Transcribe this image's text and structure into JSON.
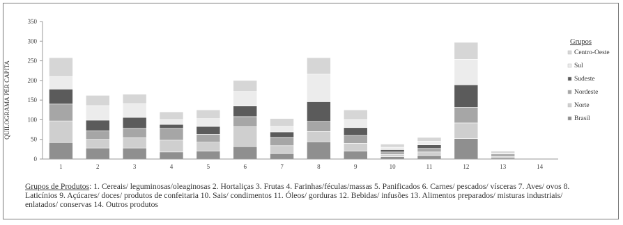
{
  "chart_data": {
    "type": "bar",
    "stacked": true,
    "ylabel": "QUILOGRAMA PER CAPITA",
    "xlabel": "",
    "ylim": [
      0,
      350
    ],
    "yticks": [
      0,
      50,
      100,
      150,
      200,
      250,
      300,
      350
    ],
    "categories": [
      "1",
      "2",
      "3",
      "4",
      "5",
      "6",
      "7",
      "8",
      "9",
      "10",
      "11",
      "12",
      "13",
      "14"
    ],
    "grid": false,
    "legend": {
      "title": "Grupos",
      "placement": "right",
      "entries": [
        "Centro-Oeste",
        "Sul",
        "Sudeste",
        "Nordeste",
        "Norte",
        "Brasil"
      ]
    },
    "series": [
      {
        "name": "Brasil",
        "color": "#8f8f8f",
        "values": [
          42,
          28,
          28,
          18,
          20,
          32,
          14,
          44,
          20,
          6,
          9,
          52,
          3,
          0
        ]
      },
      {
        "name": "Norte",
        "color": "#cfcfcf",
        "values": [
          55,
          22,
          26,
          30,
          23,
          50,
          20,
          26,
          20,
          6,
          9,
          40,
          3,
          0
        ]
      },
      {
        "name": "Nordeste",
        "color": "#a6a6a6",
        "values": [
          43,
          22,
          24,
          30,
          20,
          26,
          21,
          26,
          20,
          6,
          9,
          40,
          3,
          0
        ]
      },
      {
        "name": "Sudeste",
        "color": "#5b5b5b",
        "values": [
          38,
          27,
          28,
          10,
          20,
          27,
          14,
          50,
          20,
          6,
          9,
          57,
          3,
          0
        ]
      },
      {
        "name": "Sul",
        "color": "#ececec",
        "values": [
          32,
          37,
          35,
          12,
          20,
          37,
          14,
          70,
          20,
          6,
          9,
          65,
          3,
          0
        ]
      },
      {
        "name": "Centro-Oeste",
        "color": "#d6d6d6",
        "values": [
          48,
          26,
          24,
          20,
          22,
          28,
          20,
          42,
          25,
          8,
          10,
          43,
          5,
          0
        ]
      }
    ]
  },
  "caption": {
    "title": "Grupos de Produtos",
    "text": ": 1. Cereais/ leguminosas/oleaginosas  2. Hortaliças 3. Frutas 4. Farinhas/féculas/massas 5. Panificados 6. Carnes/ pescados/ vísceras 7. Aves/ ovos 8. Laticínios 9. Açúcares/ doces/ produtos de confeitaria 10. Sais/ condimentos 11. Óleos/ gorduras 12. Bebidas/ infusões 13. Alimentos preparados/ misturas industriais/ enlatados/ conservas 14. Outros produtos"
  }
}
